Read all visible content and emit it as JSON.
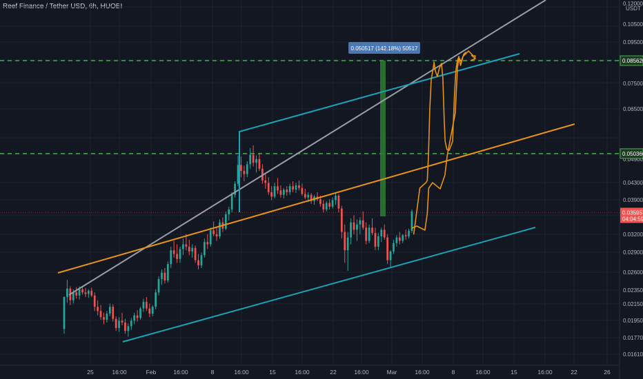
{
  "title": "Reef Finance / Tether USD, 6h, HUOBI",
  "currency": "USDT",
  "colors": {
    "background": "#131722",
    "grid": "#1f2331",
    "up": "#26a69a",
    "down": "#ef5350",
    "channel": "#1ba3b8",
    "orange": "#e69417",
    "gray_line": "#9b9ea6",
    "level_dash": "#43b047",
    "measure_bar": "#2e7d32",
    "measure_label_bg": "#4a78b5",
    "current_price_bg": "#ef5350",
    "level_tag_bg": "#1e3a22"
  },
  "chart_data": {
    "type": "candlestick",
    "title": "Reef Finance / Tether USD, 6h, HUOBI",
    "y_scale": "log",
    "y_ticks": [
      "0.120000",
      "0.105000",
      "0.095000",
      "0.085620",
      "0.075000",
      "0.065000",
      "0.050366",
      "0.049000",
      "0.043000",
      "0.039000",
      "0.035957",
      "0.032000",
      "0.029000",
      "0.026000",
      "0.023500",
      "0.021500",
      "0.019500",
      "0.017700",
      "0.016100"
    ],
    "x_ticks": [
      "25",
      "16:00",
      "Feb",
      "16:00",
      "8",
      "16:00",
      "15",
      "16:00",
      "22",
      "16:00",
      "Mar",
      "16:00",
      "8",
      "16:00",
      "15",
      "16:00",
      "22",
      "26"
    ],
    "levels": [
      {
        "price": "0.085620",
        "label": "0.085620"
      },
      {
        "price": "0.050366",
        "label": "0.050366"
      }
    ],
    "current_price": {
      "value": "0.035957",
      "countdown": "04:04:59"
    },
    "measurement": {
      "label": "0.050517 (142.18%) 50517"
    },
    "candles": [
      [
        0.0185,
        0.0223,
        0.018,
        0.0222
      ],
      [
        0.0222,
        0.0245,
        0.0215,
        0.0233
      ],
      [
        0.0233,
        0.0236,
        0.0212,
        0.0218
      ],
      [
        0.0218,
        0.0232,
        0.0214,
        0.0228
      ],
      [
        0.0228,
        0.0235,
        0.022,
        0.0224
      ],
      [
        0.0224,
        0.0236,
        0.0219,
        0.0232
      ],
      [
        0.0232,
        0.0236,
        0.0225,
        0.0228
      ],
      [
        0.0228,
        0.0234,
        0.0222,
        0.0226
      ],
      [
        0.0226,
        0.0232,
        0.0221,
        0.023
      ],
      [
        0.023,
        0.0234,
        0.0222,
        0.0224
      ],
      [
        0.0224,
        0.0228,
        0.0205,
        0.021
      ],
      [
        0.021,
        0.0218,
        0.02,
        0.0205
      ],
      [
        0.0205,
        0.0212,
        0.0195,
        0.0198
      ],
      [
        0.0198,
        0.0203,
        0.019,
        0.0195
      ],
      [
        0.0195,
        0.0205,
        0.0192,
        0.0202
      ],
      [
        0.0202,
        0.0214,
        0.0199,
        0.021
      ],
      [
        0.021,
        0.0213,
        0.0193,
        0.0196
      ],
      [
        0.0196,
        0.0199,
        0.0183,
        0.0186
      ],
      [
        0.0186,
        0.0198,
        0.0182,
        0.0194
      ],
      [
        0.0194,
        0.0203,
        0.0189,
        0.0192
      ],
      [
        0.0192,
        0.0196,
        0.018,
        0.0183
      ],
      [
        0.0183,
        0.0191,
        0.0177,
        0.0188
      ],
      [
        0.0188,
        0.0197,
        0.0184,
        0.0194
      ],
      [
        0.0194,
        0.0203,
        0.019,
        0.02
      ],
      [
        0.02,
        0.0206,
        0.0193,
        0.0197
      ],
      [
        0.0197,
        0.021,
        0.0195,
        0.0208
      ],
      [
        0.0208,
        0.022,
        0.0204,
        0.0216
      ],
      [
        0.0216,
        0.0222,
        0.0205,
        0.0208
      ],
      [
        0.0208,
        0.0214,
        0.0198,
        0.0202
      ],
      [
        0.0202,
        0.0212,
        0.0199,
        0.021
      ],
      [
        0.021,
        0.0232,
        0.0207,
        0.0228
      ],
      [
        0.0228,
        0.025,
        0.0224,
        0.0246
      ],
      [
        0.0246,
        0.026,
        0.0238,
        0.0255
      ],
      [
        0.0255,
        0.0262,
        0.024,
        0.0244
      ],
      [
        0.0244,
        0.0272,
        0.0241,
        0.0268
      ],
      [
        0.0268,
        0.0296,
        0.0262,
        0.029
      ],
      [
        0.029,
        0.0306,
        0.0278,
        0.0284
      ],
      [
        0.0284,
        0.03,
        0.027,
        0.0276
      ],
      [
        0.0276,
        0.0296,
        0.027,
        0.0292
      ],
      [
        0.0292,
        0.031,
        0.0282,
        0.03
      ],
      [
        0.03,
        0.0318,
        0.029,
        0.0296
      ],
      [
        0.0296,
        0.0308,
        0.0282,
        0.0288
      ],
      [
        0.0288,
        0.03,
        0.0278,
        0.0294
      ],
      [
        0.0294,
        0.0298,
        0.027,
        0.0274
      ],
      [
        0.0274,
        0.0284,
        0.026,
        0.0266
      ],
      [
        0.0266,
        0.0286,
        0.0262,
        0.0282
      ],
      [
        0.0282,
        0.031,
        0.0278,
        0.0304
      ],
      [
        0.0304,
        0.0318,
        0.0292,
        0.03
      ],
      [
        0.03,
        0.033,
        0.0296,
        0.0325
      ],
      [
        0.0325,
        0.0342,
        0.0314,
        0.0318
      ],
      [
        0.0318,
        0.033,
        0.0306,
        0.0314
      ],
      [
        0.0314,
        0.0346,
        0.031,
        0.034
      ],
      [
        0.034,
        0.035,
        0.0322,
        0.0328
      ],
      [
        0.0328,
        0.0362,
        0.0325,
        0.0356
      ],
      [
        0.0356,
        0.0372,
        0.0344,
        0.0366
      ],
      [
        0.0366,
        0.0404,
        0.036,
        0.0398
      ],
      [
        0.0398,
        0.043,
        0.0392,
        0.0424
      ],
      [
        0.0424,
        0.0498,
        0.0418,
        0.0472
      ],
      [
        0.0472,
        0.0495,
        0.044,
        0.0456
      ],
      [
        0.0456,
        0.047,
        0.043,
        0.0448
      ],
      [
        0.0448,
        0.0482,
        0.044,
        0.0474
      ],
      [
        0.0474,
        0.052,
        0.0462,
        0.05
      ],
      [
        0.05,
        0.0528,
        0.0468,
        0.0478
      ],
      [
        0.0478,
        0.0498,
        0.0452,
        0.0488
      ],
      [
        0.0488,
        0.0506,
        0.0456,
        0.0462
      ],
      [
        0.0462,
        0.0474,
        0.0424,
        0.0432
      ],
      [
        0.0432,
        0.0448,
        0.0412,
        0.0426
      ],
      [
        0.0426,
        0.044,
        0.0398,
        0.0404
      ],
      [
        0.0404,
        0.0418,
        0.0386,
        0.0394
      ],
      [
        0.0394,
        0.0426,
        0.039,
        0.0418
      ],
      [
        0.0418,
        0.0438,
        0.04,
        0.0408
      ],
      [
        0.0408,
        0.042,
        0.0392,
        0.0398
      ],
      [
        0.0398,
        0.0414,
        0.039,
        0.041
      ],
      [
        0.041,
        0.0418,
        0.0396,
        0.0404
      ],
      [
        0.0404,
        0.0424,
        0.0398,
        0.0418
      ],
      [
        0.0418,
        0.043,
        0.0404,
        0.041
      ],
      [
        0.041,
        0.0426,
        0.0402,
        0.042
      ],
      [
        0.042,
        0.0432,
        0.0408,
        0.0414
      ],
      [
        0.0414,
        0.0424,
        0.0396,
        0.04
      ],
      [
        0.04,
        0.0412,
        0.0388,
        0.0392
      ],
      [
        0.0392,
        0.0404,
        0.0382,
        0.0398
      ],
      [
        0.0398,
        0.0402,
        0.0378,
        0.0384
      ],
      [
        0.0384,
        0.0398,
        0.0376,
        0.0394
      ],
      [
        0.0394,
        0.0404,
        0.0384,
        0.0388
      ],
      [
        0.0388,
        0.0396,
        0.0372,
        0.0378
      ],
      [
        0.0378,
        0.0386,
        0.036,
        0.0366
      ],
      [
        0.0366,
        0.0384,
        0.0362,
        0.038
      ],
      [
        0.038,
        0.0388,
        0.0366,
        0.0372
      ],
      [
        0.0372,
        0.0392,
        0.0368,
        0.0386
      ],
      [
        0.0386,
        0.0404,
        0.0376,
        0.0396
      ],
      [
        0.0396,
        0.04,
        0.036,
        0.0368
      ],
      [
        0.0368,
        0.0374,
        0.031,
        0.0322
      ],
      [
        0.0322,
        0.0336,
        0.027,
        0.029
      ],
      [
        0.029,
        0.0322,
        0.0258,
        0.0312
      ],
      [
        0.0312,
        0.0348,
        0.03,
        0.034
      ],
      [
        0.034,
        0.0354,
        0.0318,
        0.0326
      ],
      [
        0.0326,
        0.0346,
        0.0306,
        0.0336
      ],
      [
        0.0336,
        0.035,
        0.0318,
        0.0344
      ],
      [
        0.0344,
        0.0362,
        0.0326,
        0.033
      ],
      [
        0.033,
        0.034,
        0.03,
        0.0306
      ],
      [
        0.0306,
        0.0336,
        0.0302,
        0.033
      ],
      [
        0.033,
        0.0348,
        0.0316,
        0.032
      ],
      [
        0.032,
        0.033,
        0.029,
        0.0296
      ],
      [
        0.0296,
        0.032,
        0.029,
        0.0314
      ],
      [
        0.0314,
        0.033,
        0.0304,
        0.0326
      ],
      [
        0.0326,
        0.0336,
        0.0308,
        0.0312
      ],
      [
        0.0312,
        0.0318,
        0.0268,
        0.0274
      ],
      [
        0.0274,
        0.029,
        0.0262,
        0.0288
      ],
      [
        0.0288,
        0.0308,
        0.0284,
        0.0302
      ],
      [
        0.0302,
        0.0316,
        0.0296,
        0.0312
      ],
      [
        0.0312,
        0.0322,
        0.03,
        0.0306
      ],
      [
        0.0306,
        0.0318,
        0.0302,
        0.0316
      ],
      [
        0.0316,
        0.0326,
        0.0308,
        0.0314
      ],
      [
        0.0314,
        0.0328,
        0.031,
        0.0324
      ],
      [
        0.0324,
        0.0366,
        0.032,
        0.0362
      ]
    ],
    "forecast_paths": [
      [
        [
          0.6435,
          0.6176
        ],
        [
          0.6471,
          0.5709
        ],
        [
          0.6529,
          0.4964
        ],
        [
          0.6624,
          0.4818
        ],
        [
          0.6645,
          0.4764
        ],
        [
          0.6663,
          0.4127
        ],
        [
          0.6684,
          0.2909
        ],
        [
          0.6706,
          0.2109
        ],
        [
          0.6748,
          0.1691
        ],
        [
          0.6749,
          0.1636
        ],
        [
          0.677,
          0.1873
        ],
        [
          0.6802,
          0.2018
        ],
        [
          0.6834,
          0.18
        ],
        [
          0.6866,
          0.1673
        ],
        [
          0.6887,
          0.2073
        ],
        [
          0.6909,
          0.3182
        ],
        [
          0.6923,
          0.3727
        ],
        [
          0.6951,
          0.3945
        ],
        [
          0.6987,
          0.3964
        ],
        [
          0.7039,
          0.3727
        ],
        [
          0.7067,
          0.2582
        ],
        [
          0.7088,
          0.1891
        ],
        [
          0.711,
          0.1618
        ],
        [
          0.7136,
          0.1491
        ],
        [
          0.7162,
          0.1727
        ],
        [
          0.7183,
          0.16
        ],
        [
          0.721,
          0.1436
        ],
        [
          0.7242,
          0.1382
        ]
      ],
      [
        [
          0.6409,
          0.6018
        ],
        [
          0.6482,
          0.5964
        ],
        [
          0.6608,
          0.6073
        ],
        [
          0.6645,
          0.5636
        ],
        [
          0.6667,
          0.4964
        ],
        [
          0.6727,
          0.4818
        ],
        [
          0.6845,
          0.4982
        ],
        [
          0.692,
          0.4618
        ],
        [
          0.6955,
          0.4109
        ],
        [
          0.7006,
          0.3636
        ],
        [
          0.7081,
          0.2982
        ],
        [
          0.7115,
          0.1782
        ],
        [
          0.7137,
          0.1527
        ],
        [
          0.7172,
          0.1618
        ],
        [
          0.7199,
          0.1491
        ],
        [
          0.7286,
          0.1345
        ],
        [
          0.736,
          0.1473
        ],
        [
          0.7392,
          0.1473
        ],
        [
          0.7382,
          0.1564
        ]
      ]
    ]
  }
}
